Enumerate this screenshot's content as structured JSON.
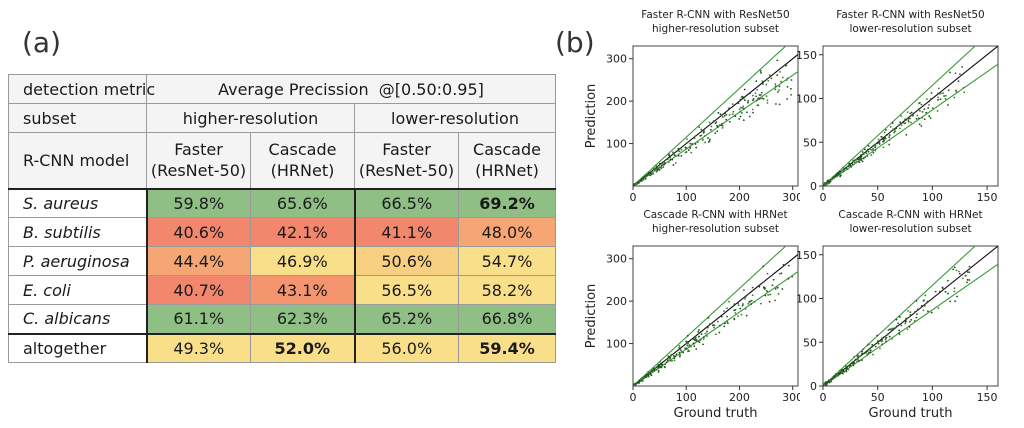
{
  "panel_labels": {
    "a": "(a)",
    "b": "(b)"
  },
  "table": {
    "metric_label": "detection metric",
    "metric_value": "Average Precission  @[0.50:0.95]",
    "subset_label": "subset",
    "subset_high": "higher-resolution",
    "subset_low": "lower-resolution",
    "model_label": "R-CNN model",
    "models": [
      {
        "line1": "Faster",
        "line2": "(ResNet-50)"
      },
      {
        "line1": "Cascade",
        "line2": "(HRNet)"
      },
      {
        "line1": "Faster",
        "line2": "(ResNet-50)"
      },
      {
        "line1": "Cascade",
        "line2": "(HRNet)"
      }
    ],
    "rows": [
      {
        "name": "S. aureus",
        "italic": true,
        "values": [
          "59.8%",
          "65.6%",
          "66.5%",
          "69.2%"
        ],
        "bold": [
          false,
          false,
          false,
          true
        ],
        "colors": [
          "#8fbf85",
          "#8fbf85",
          "#8fbf85",
          "#8fbf85"
        ]
      },
      {
        "name": "B. subtilis",
        "italic": true,
        "values": [
          "40.6%",
          "42.1%",
          "41.1%",
          "48.0%"
        ],
        "bold": [
          false,
          false,
          false,
          false
        ],
        "colors": [
          "#f2876e",
          "#f2876e",
          "#f2876e",
          "#f6a574"
        ]
      },
      {
        "name": "P. aeruginosa",
        "italic": true,
        "values": [
          "44.4%",
          "46.9%",
          "50.6%",
          "54.7%"
        ],
        "bold": [
          false,
          false,
          false,
          false
        ],
        "colors": [
          "#f6a574",
          "#f9df8a",
          "#f7cf80",
          "#f9df8a"
        ]
      },
      {
        "name": "E. coli",
        "italic": true,
        "values": [
          "40.7%",
          "43.1%",
          "56.5%",
          "58.2%"
        ],
        "bold": [
          false,
          false,
          false,
          false
        ],
        "colors": [
          "#f2876e",
          "#f4956f",
          "#f9df8a",
          "#f9df8a"
        ]
      },
      {
        "name": "C. albicans",
        "italic": true,
        "values": [
          "61.1%",
          "62.3%",
          "65.2%",
          "66.8%"
        ],
        "bold": [
          false,
          false,
          false,
          false
        ],
        "colors": [
          "#8fbf85",
          "#8fbf85",
          "#8fbf85",
          "#8fbf85"
        ]
      },
      {
        "name": "altogether",
        "italic": false,
        "values": [
          "49.3%",
          "52.0%",
          "56.0%",
          "59.4%"
        ],
        "bold": [
          false,
          true,
          false,
          true
        ],
        "colors": [
          "#f9df8a",
          "#f9df8a",
          "#f9df8a",
          "#f9df8a"
        ]
      }
    ]
  },
  "chart_data": [
    {
      "type": "scatter",
      "title": "Faster R-CNN with ResNet50",
      "subtitle": "higher-resolution subset",
      "xlabel": "",
      "ylabel": "Prediction",
      "xlim": [
        0,
        310
      ],
      "ylim": [
        0,
        330
      ],
      "xticks": [
        0,
        100,
        200,
        300
      ],
      "yticks": [
        100,
        200,
        300
      ],
      "lines": [
        {
          "slope": 1.0,
          "color": "#111111"
        },
        {
          "slope": 1.15,
          "color": "#3a9a3a"
        },
        {
          "slope": 0.87,
          "color": "#3a9a3a"
        }
      ],
      "point_summary": {
        "count": 260,
        "max_x": 300,
        "trend_slope": 0.9,
        "spread": 0.12
      }
    },
    {
      "type": "scatter",
      "title": "Faster R-CNN with ResNet50",
      "subtitle": "lower-resolution subset",
      "xlabel": "",
      "ylabel": "",
      "xlim": [
        0,
        160
      ],
      "ylim": [
        0,
        160
      ],
      "xticks": [
        0,
        50,
        100,
        150
      ],
      "yticks": [
        0,
        50,
        100,
        150
      ],
      "lines": [
        {
          "slope": 1.0,
          "color": "#111111"
        },
        {
          "slope": 1.15,
          "color": "#3a9a3a"
        },
        {
          "slope": 0.87,
          "color": "#3a9a3a"
        }
      ],
      "point_summary": {
        "count": 220,
        "max_x": 130,
        "trend_slope": 0.95,
        "spread": 0.1
      }
    },
    {
      "type": "scatter",
      "title": "Cascade R-CNN with HRNet",
      "subtitle": "higher-resolution subset",
      "xlabel": "Ground truth",
      "ylabel": "Prediction",
      "xlim": [
        0,
        310
      ],
      "ylim": [
        0,
        330
      ],
      "xticks": [
        0,
        100,
        200,
        300
      ],
      "yticks": [
        100,
        200,
        300
      ],
      "lines": [
        {
          "slope": 1.0,
          "color": "#111111"
        },
        {
          "slope": 1.15,
          "color": "#3a9a3a"
        },
        {
          "slope": 0.87,
          "color": "#3a9a3a"
        }
      ],
      "point_summary": {
        "count": 260,
        "max_x": 300,
        "trend_slope": 0.92,
        "spread": 0.12
      }
    },
    {
      "type": "scatter",
      "title": "Cascade R-CNN with HRNet",
      "subtitle": "lower-resolution subset",
      "xlabel": "Ground truth",
      "ylabel": "",
      "xlim": [
        0,
        160
      ],
      "ylim": [
        0,
        160
      ],
      "xticks": [
        0,
        50,
        100,
        150
      ],
      "yticks": [
        0,
        50,
        100,
        150
      ],
      "lines": [
        {
          "slope": 1.0,
          "color": "#111111"
        },
        {
          "slope": 1.15,
          "color": "#3a9a3a"
        },
        {
          "slope": 0.87,
          "color": "#3a9a3a"
        }
      ],
      "point_summary": {
        "count": 220,
        "max_x": 135,
        "trend_slope": 0.97,
        "spread": 0.1
      }
    }
  ]
}
